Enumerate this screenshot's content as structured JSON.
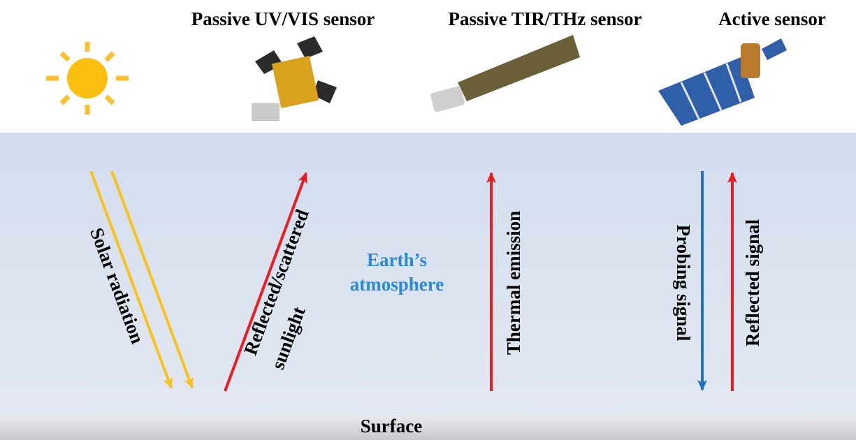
{
  "sensors": [
    "Passive UV/VIS sensor",
    "Passive TIR/THz sensor",
    "Active sensor"
  ],
  "solar_radiation": "Solar radiation",
  "reflected_sunlight": [
    "Reflected/scattered",
    "sunlight"
  ],
  "atmosphere": [
    "Earth’s",
    "atmosphere"
  ],
  "thermal_emission": "Thermal emission",
  "probing_signal": "Probing signal",
  "reflected_signal": "Reflected signal",
  "surface": "Surface"
}
